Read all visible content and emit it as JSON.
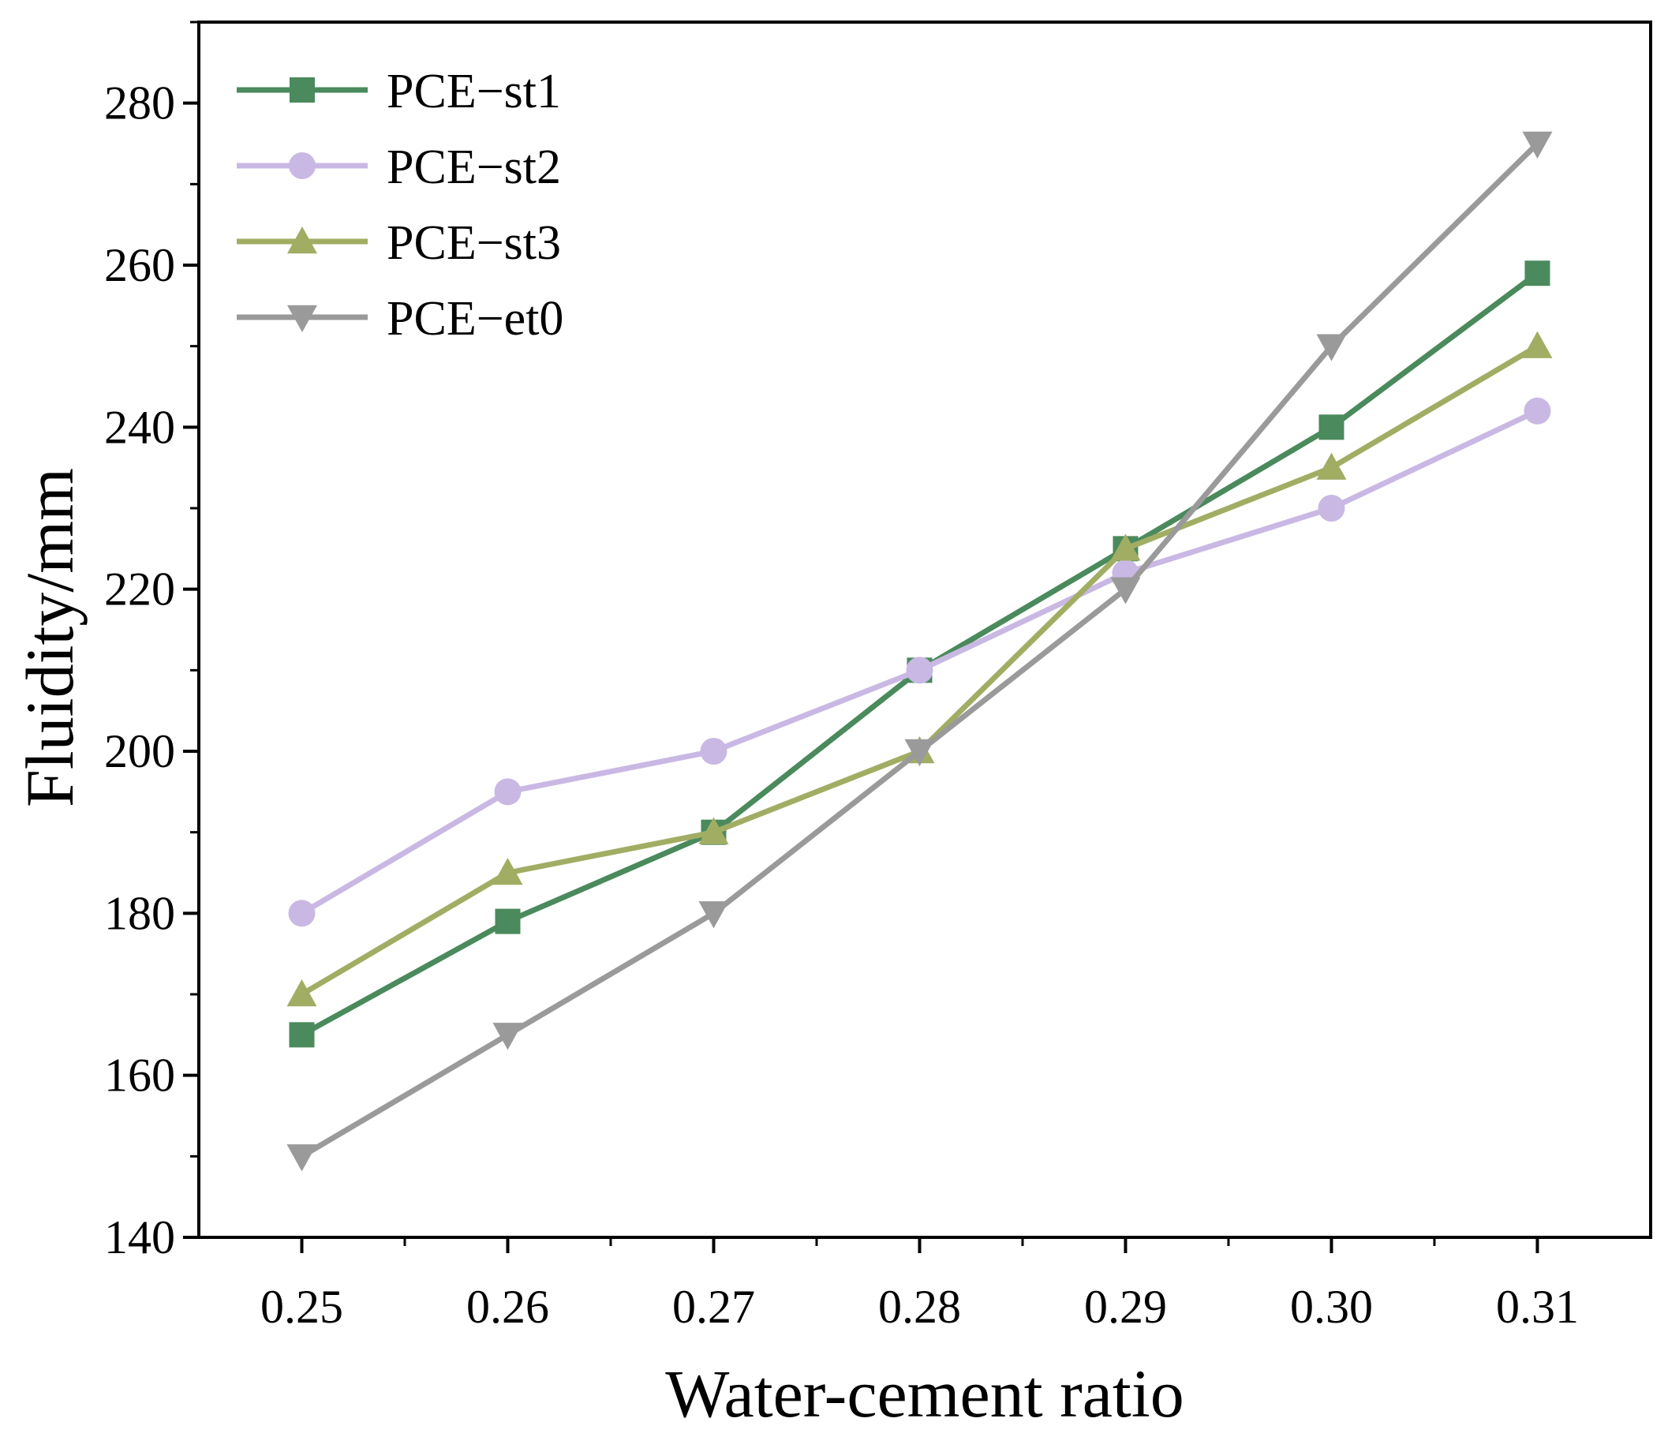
{
  "chart_data": {
    "type": "line",
    "title": "",
    "xlabel": "Water-cement ratio",
    "ylabel": "Fluidity/mm",
    "x": [
      0.25,
      0.26,
      0.27,
      0.28,
      0.29,
      0.3,
      0.31
    ],
    "x_tick_labels": [
      "0.25",
      "0.26",
      "0.27",
      "0.28",
      "0.29",
      "0.30",
      "0.31"
    ],
    "xlim": [
      0.245,
      0.3155
    ],
    "ylim": [
      140,
      290
    ],
    "y_ticks": [
      140,
      160,
      180,
      200,
      220,
      240,
      260,
      280
    ],
    "y_tick_labels": [
      "140",
      "160",
      "180",
      "200",
      "220",
      "240",
      "260",
      "280"
    ],
    "grid": false,
    "legend_position": "top-left",
    "series": [
      {
        "name": "PCE−st1",
        "color": "#4a8a5c",
        "marker": "square",
        "values": [
          165,
          179,
          190,
          210,
          225,
          240,
          259
        ]
      },
      {
        "name": "PCE−st2",
        "color": "#c9b8e4",
        "marker": "circle",
        "values": [
          180,
          195,
          200,
          210,
          222,
          230,
          242
        ]
      },
      {
        "name": "PCE−st3",
        "color": "#a2ad64",
        "marker": "triangle-up",
        "values": [
          170,
          185,
          190,
          200,
          225,
          235,
          250
        ]
      },
      {
        "name": "PCE−et0",
        "color": "#9a9a9a",
        "marker": "triangle-down",
        "values": [
          150,
          165,
          180,
          200,
          220,
          250,
          275
        ]
      }
    ]
  }
}
